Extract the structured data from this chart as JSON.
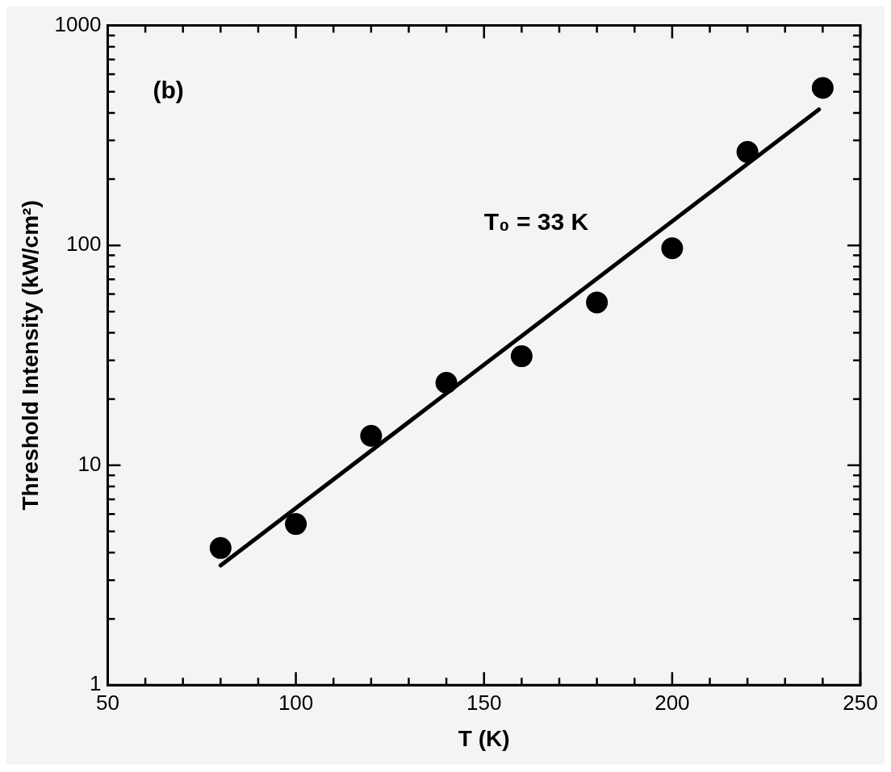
{
  "chart_data": {
    "type": "scatter",
    "xlabel": "T (K)",
    "ylabel": "Threshold Intensity (kW/cm²)",
    "annotations": [
      "(b)",
      "T₀ = 33 K"
    ],
    "xlim": [
      50,
      250
    ],
    "xticks": [
      50,
      {
        "value": 60,
        "label": null
      },
      {
        "value": 70,
        "label": null
      },
      {
        "value": 80,
        "label": null
      },
      {
        "value": 90,
        "label": null
      },
      100,
      {
        "value": 110,
        "label": null
      },
      {
        "value": 120,
        "label": null
      },
      {
        "value": 130,
        "label": null
      },
      {
        "value": 140,
        "label": null
      },
      150,
      {
        "value": 160,
        "label": null
      },
      {
        "value": 170,
        "label": null
      },
      {
        "value": 180,
        "label": null
      },
      {
        "value": 190,
        "label": null
      },
      200,
      {
        "value": 210,
        "label": null
      },
      {
        "value": 220,
        "label": null
      },
      {
        "value": 230,
        "label": null
      },
      {
        "value": 240,
        "label": null
      },
      250
    ],
    "ylim": [
      1,
      1000
    ],
    "yticks": [
      1,
      {
        "value": 2,
        "label": null
      },
      {
        "value": 3,
        "label": null
      },
      {
        "value": 4,
        "label": null
      },
      {
        "value": 5,
        "label": null
      },
      {
        "value": 6,
        "label": null
      },
      {
        "value": 7,
        "label": null
      },
      {
        "value": 8,
        "label": null
      },
      {
        "value": 9,
        "label": null
      },
      10,
      {
        "value": 20,
        "label": null
      },
      {
        "value": 30,
        "label": null
      },
      {
        "value": 40,
        "label": null
      },
      {
        "value": 50,
        "label": null
      },
      {
        "value": 60,
        "label": null
      },
      {
        "value": 70,
        "label": null
      },
      {
        "value": 80,
        "label": null
      },
      {
        "value": 90,
        "label": null
      },
      100,
      {
        "value": 200,
        "label": null
      },
      {
        "value": 300,
        "label": null
      },
      {
        "value": 400,
        "label": null
      },
      {
        "value": 500,
        "label": null
      },
      {
        "value": 600,
        "label": null
      },
      {
        "value": 700,
        "label": null
      },
      {
        "value": 800,
        "label": null
      },
      {
        "value": 900,
        "label": null
      },
      1000
    ],
    "log": "y",
    "grid": false,
    "legend": false,
    "marker": "circle",
    "series": [
      {
        "color": "#000000",
        "x": [
          80,
          100,
          120,
          140,
          160,
          180,
          200,
          220,
          240
        ],
        "values": [
          4.2,
          5.4,
          13.6,
          23.7,
          31.3,
          55,
          97,
          266,
          520
        ]
      },
      {
        "type": "line",
        "color": "#000000",
        "x": [
          80,
          239
        ],
        "values": [
          3.5,
          415
        ],
        "marker": "none",
        "line_style": "solid"
      }
    ]
  }
}
